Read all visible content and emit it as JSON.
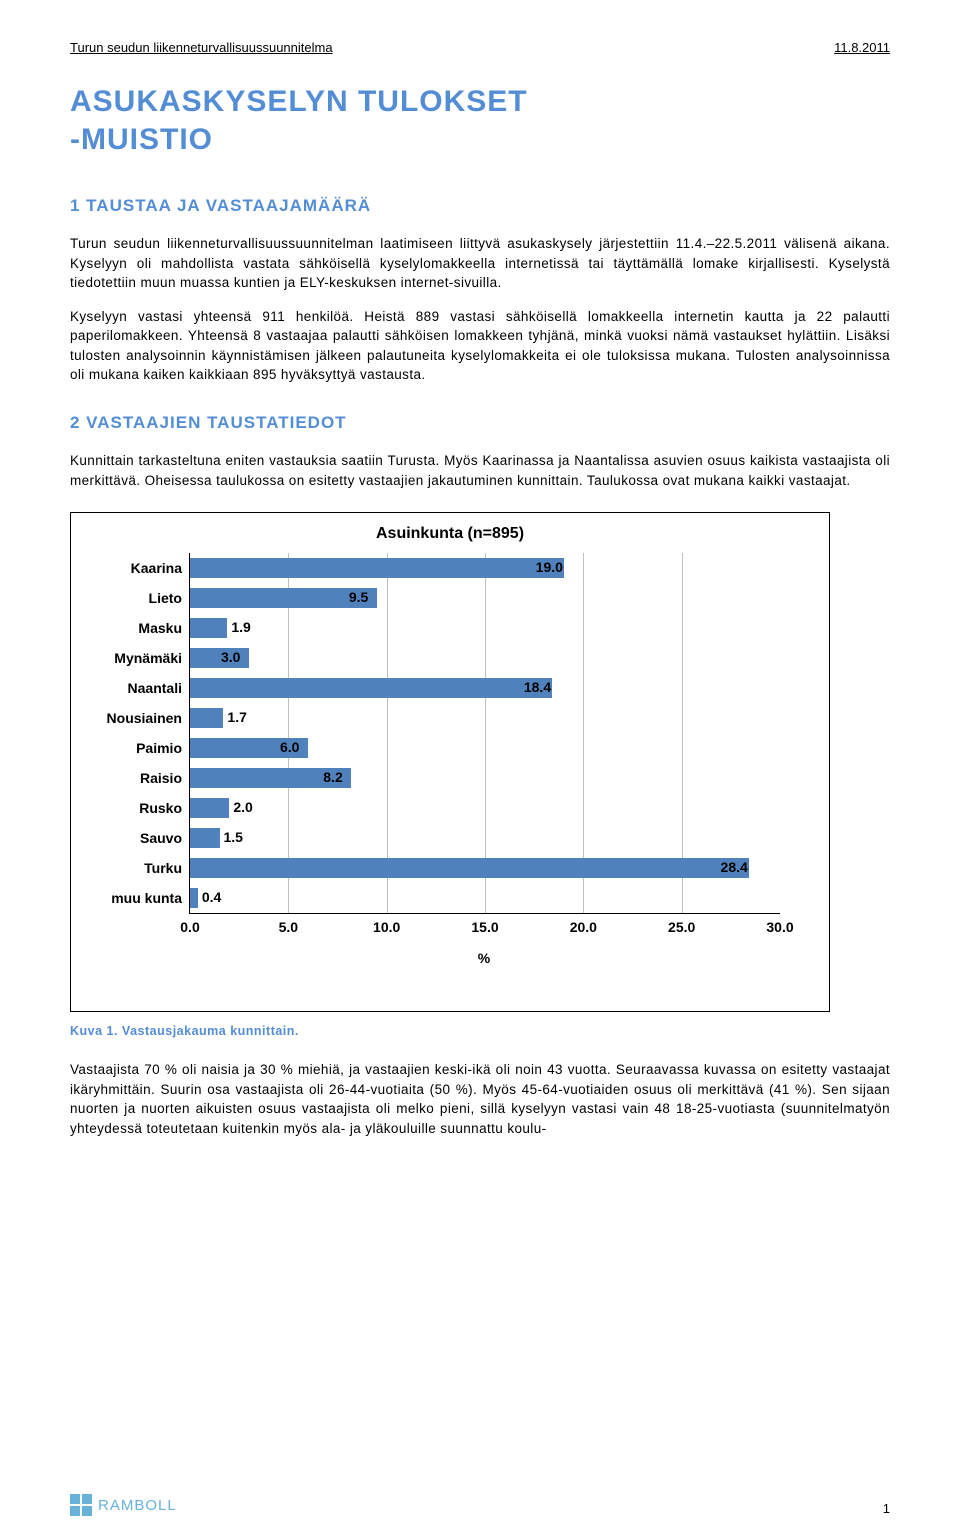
{
  "header": {
    "left": "Turun seudun liikenneturvallisuussuunnitelma",
    "right": "11.8.2011"
  },
  "title_line1": "ASUKASKYSELYN TULOKSET",
  "title_line2": "-MUISTIO",
  "section1_title": "1  TAUSTAA JA VASTAAJAMÄÄRÄ",
  "p1": "Turun seudun liikenneturvallisuussuunnitelman laatimiseen liittyvä asukaskysely järjestettiin 11.4.–22.5.2011 välisenä aikana. Kyselyyn oli mahdollista vastata sähköisellä kyselylomakkeella internetissä tai täyttämällä lomake kirjallisesti. Kyselystä tiedotettiin muun muassa kuntien ja ELY-keskuksen internet-sivuilla.",
  "p2": "Kyselyyn vastasi yhteensä 911 henkilöä. Heistä 889 vastasi sähköisellä lomakkeella internetin kautta ja 22 palautti paperilomakkeen. Yhteensä 8 vastaajaa palautti sähköisen lomakkeen tyhjänä, minkä vuoksi nämä vastaukset hylättiin. Lisäksi tulosten analysoinnin käynnistämisen jälkeen palautuneita kyselylomakkeita ei ole tuloksissa mukana. Tulosten analysoinnissa oli mukana kaiken kaikkiaan 895 hyväksyttyä vastausta.",
  "section2_title": "2  VASTAAJIEN TAUSTATIEDOT",
  "p3": "Kunnittain tarkasteltuna eniten vastauksia saatiin Turusta. Myös Kaarinassa ja Naantalissa asuvien osuus kaikista vastaajista oli merkittävä. Oheisessa taulukossa on esitetty vastaajien jakautuminen kunnittain. Taulukossa ovat mukana kaikki vastaajat.",
  "chart": {
    "type": "bar",
    "title": "Asuinkunta (n=895)",
    "x_axis_label": "%",
    "xlim": [
      0,
      30
    ],
    "xtick_step": 5,
    "bar_color": "#4f81bd",
    "grid_color": "#c0c0c0",
    "background_color": "#ffffff",
    "label_fontsize": 14,
    "title_fontsize": 16,
    "categories": [
      "Kaarina",
      "Lieto",
      "Masku",
      "Mynämäki",
      "Naantali",
      "Nousiainen",
      "Paimio",
      "Raisio",
      "Rusko",
      "Sauvo",
      "Turku",
      "muu kunta"
    ],
    "values": [
      19.0,
      9.5,
      1.9,
      3.0,
      18.4,
      1.7,
      6.0,
      8.2,
      2.0,
      1.5,
      28.4,
      0.4
    ],
    "xticks": [
      "0.0",
      "5.0",
      "10.0",
      "15.0",
      "20.0",
      "25.0",
      "30.0"
    ]
  },
  "figure_caption": "Kuva 1. Vastausjakauma kunnittain.",
  "p4": "Vastaajista 70 % oli naisia ja 30 % miehiä, ja vastaajien keski-ikä oli noin 43 vuotta. Seuraavassa kuvassa on esitetty vastaajat ikäryhmittäin. Suurin osa vastaajista oli 26-44-vuotiaita (50 %). Myös 45-64-vuotiaiden osuus oli merkittävä (41 %). Sen sijaan nuorten ja nuorten aikuisten osuus vastaajista oli melko pieni, sillä kyselyyn vastasi vain 48 18-25-vuotiasta (suunnitelmatyön yhteydessä toteutetaan kuitenkin myös ala- ja yläkouluille suunnattu koulu-",
  "footer": {
    "logo_text": "RAMBOLL",
    "page_number": "1"
  }
}
